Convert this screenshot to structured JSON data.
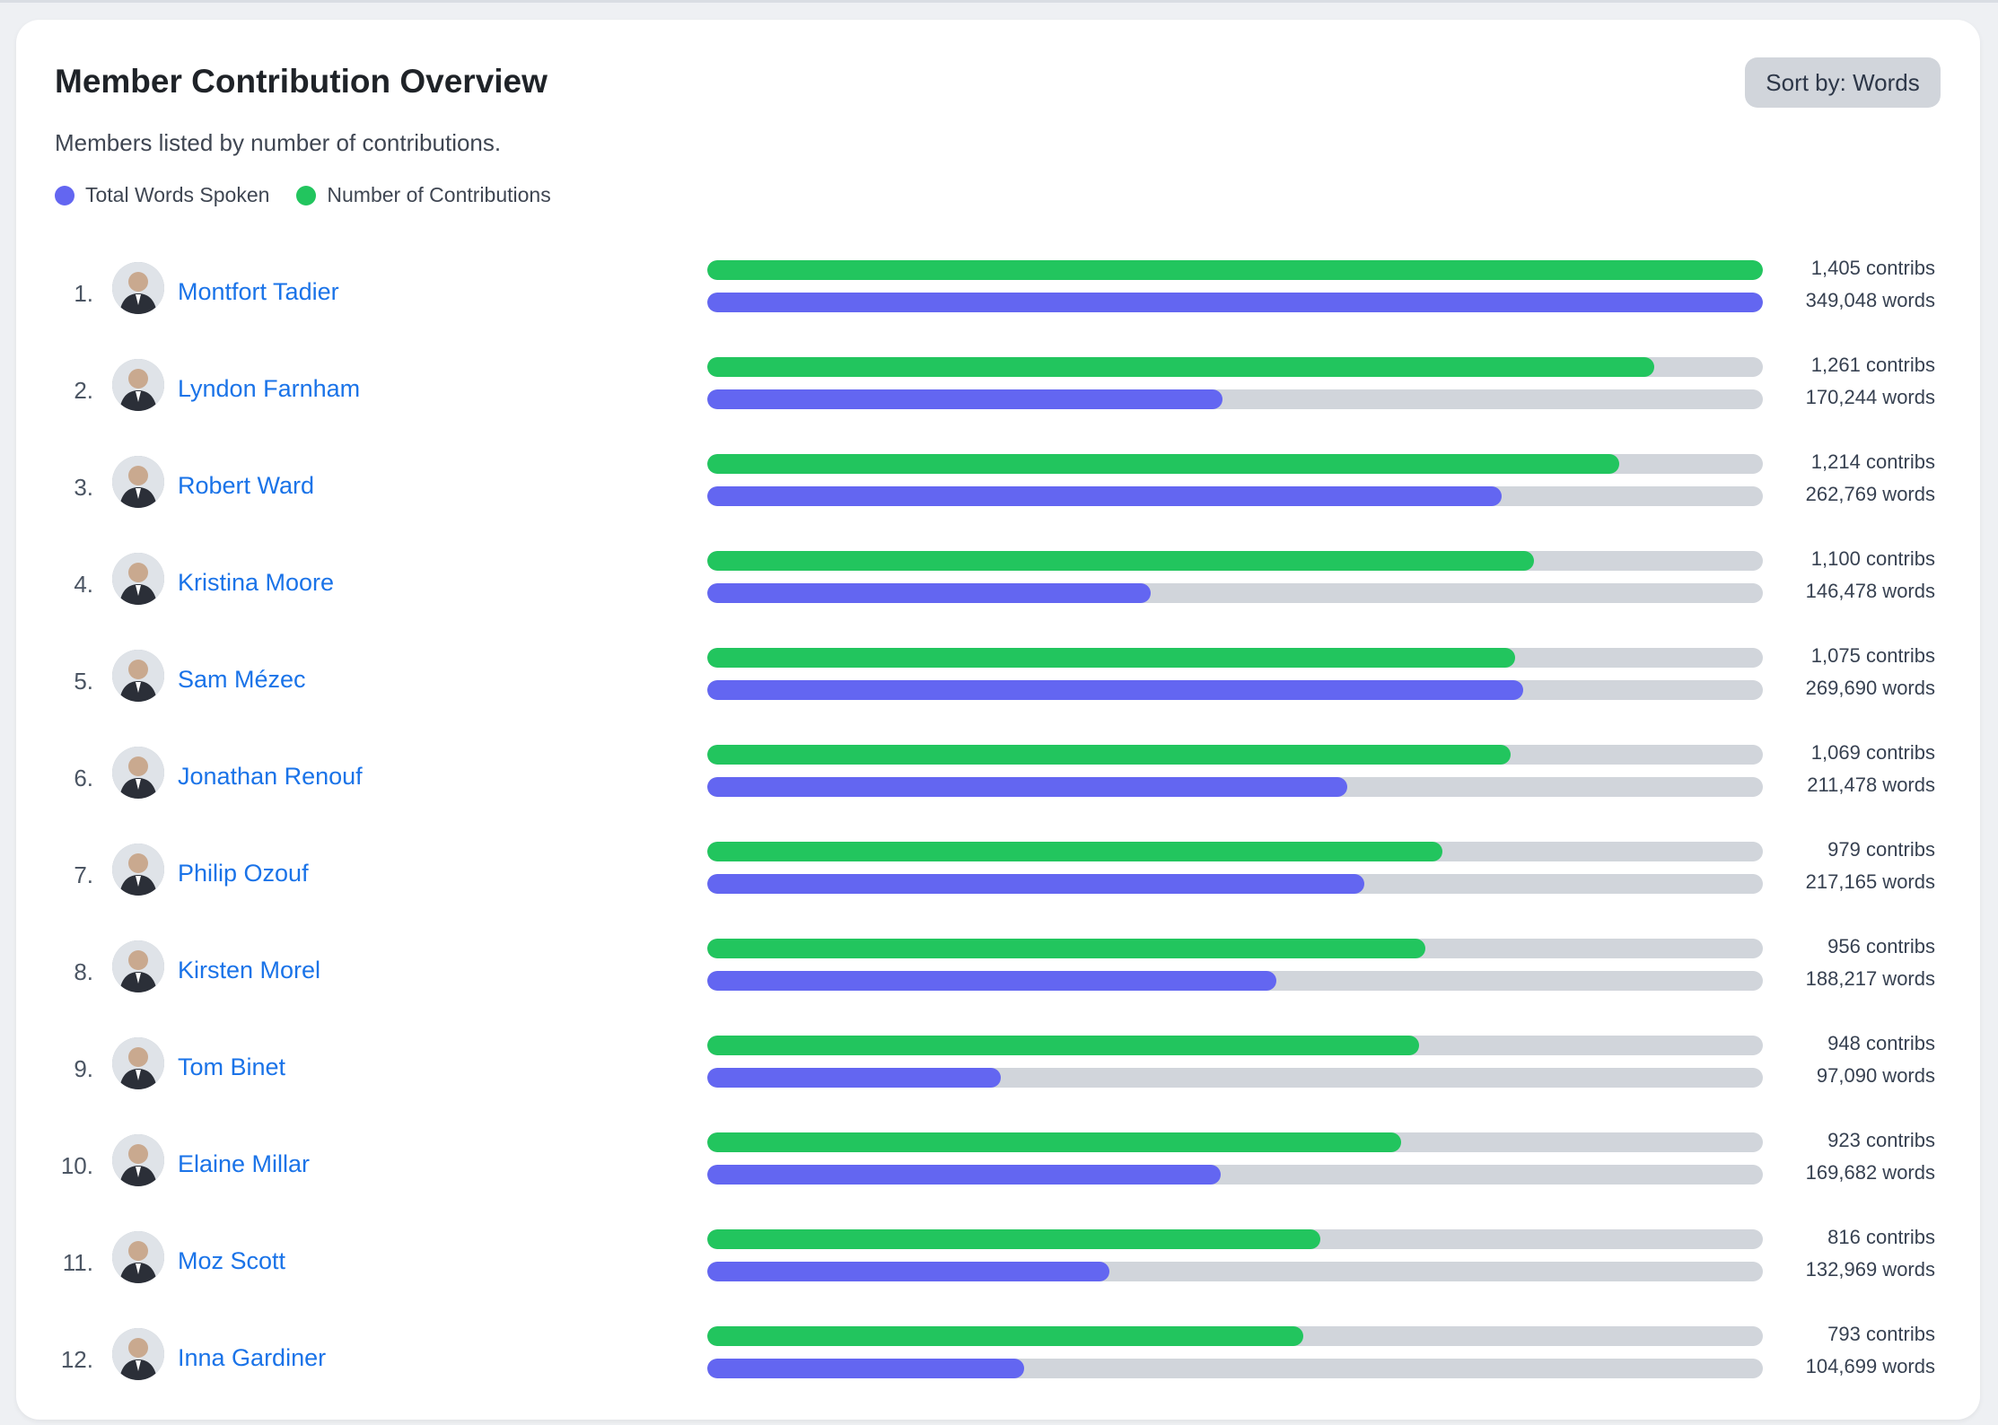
{
  "header": {
    "title": "Member Contribution Overview",
    "subtitle": "Members listed by number of contributions.",
    "sort_label": "Sort by: Words"
  },
  "legend": [
    {
      "label": "Total Words Spoken",
      "color": "#6366f1"
    },
    {
      "label": "Number of Contributions",
      "color": "#22c55e"
    }
  ],
  "colors": {
    "accent_link": "#1a73e8",
    "track": "#d1d5db",
    "contributions": "#22c55e",
    "words": "#6366f1"
  },
  "chart_data": {
    "type": "bar",
    "categories": [
      "Montfort Tadier",
      "Lyndon Farnham",
      "Robert Ward",
      "Kristina Moore",
      "Sam Mézec",
      "Jonathan Renouf",
      "Philip Ozouf",
      "Kirsten Morel",
      "Tom Binet",
      "Elaine Millar",
      "Moz Scott",
      "Inna Gardiner"
    ],
    "series": [
      {
        "name": "Number of Contributions",
        "values": [
          1405,
          1261,
          1214,
          1100,
          1075,
          1069,
          979,
          956,
          948,
          923,
          816,
          793
        ]
      },
      {
        "name": "Total Words Spoken",
        "values": [
          349048,
          170244,
          262769,
          146478,
          269690,
          211478,
          217165,
          188217,
          97090,
          169682,
          132969,
          104699
        ]
      }
    ]
  },
  "members": [
    {
      "rank": "1.",
      "name": "Montfort Tadier",
      "contribs": 1405,
      "words": 349048,
      "contribs_text": "1,405 contribs",
      "words_text": "349,048 words",
      "avatar_icon": "member-photo-icon"
    },
    {
      "rank": "2.",
      "name": "Lyndon Farnham",
      "contribs": 1261,
      "words": 170244,
      "contribs_text": "1,261 contribs",
      "words_text": "170,244 words",
      "avatar_icon": "member-photo-icon"
    },
    {
      "rank": "3.",
      "name": "Robert Ward",
      "contribs": 1214,
      "words": 262769,
      "contribs_text": "1,214 contribs",
      "words_text": "262,769 words",
      "avatar_icon": "member-photo-icon"
    },
    {
      "rank": "4.",
      "name": "Kristina Moore",
      "contribs": 1100,
      "words": 146478,
      "contribs_text": "1,100 contribs",
      "words_text": "146,478 words",
      "avatar_icon": "member-photo-icon"
    },
    {
      "rank": "5.",
      "name": "Sam Mézec",
      "contribs": 1075,
      "words": 269690,
      "contribs_text": "1,075 contribs",
      "words_text": "269,690 words",
      "avatar_icon": "member-photo-icon"
    },
    {
      "rank": "6.",
      "name": "Jonathan Renouf",
      "contribs": 1069,
      "words": 211478,
      "contribs_text": "1,069 contribs",
      "words_text": "211,478 words",
      "avatar_icon": "member-photo-icon"
    },
    {
      "rank": "7.",
      "name": "Philip Ozouf",
      "contribs": 979,
      "words": 217165,
      "contribs_text": "979 contribs",
      "words_text": "217,165 words",
      "avatar_icon": "member-photo-icon"
    },
    {
      "rank": "8.",
      "name": "Kirsten Morel",
      "contribs": 956,
      "words": 188217,
      "contribs_text": "956 contribs",
      "words_text": "188,217 words",
      "avatar_icon": "member-photo-icon"
    },
    {
      "rank": "9.",
      "name": "Tom Binet",
      "contribs": 948,
      "words": 97090,
      "contribs_text": "948 contribs",
      "words_text": "97,090 words",
      "avatar_icon": "member-photo-icon"
    },
    {
      "rank": "10.",
      "name": "Elaine Millar",
      "contribs": 923,
      "words": 169682,
      "contribs_text": "923 contribs",
      "words_text": "169,682 words",
      "avatar_icon": "member-photo-icon"
    },
    {
      "rank": "11.",
      "name": "Moz Scott",
      "contribs": 816,
      "words": 132969,
      "contribs_text": "816 contribs",
      "words_text": "132,969 words",
      "avatar_icon": "member-photo-icon"
    },
    {
      "rank": "12.",
      "name": "Inna Gardiner",
      "contribs": 793,
      "words": 104699,
      "contribs_text": "793 contribs",
      "words_text": "104,699 words",
      "avatar_icon": "member-photo-icon"
    }
  ]
}
